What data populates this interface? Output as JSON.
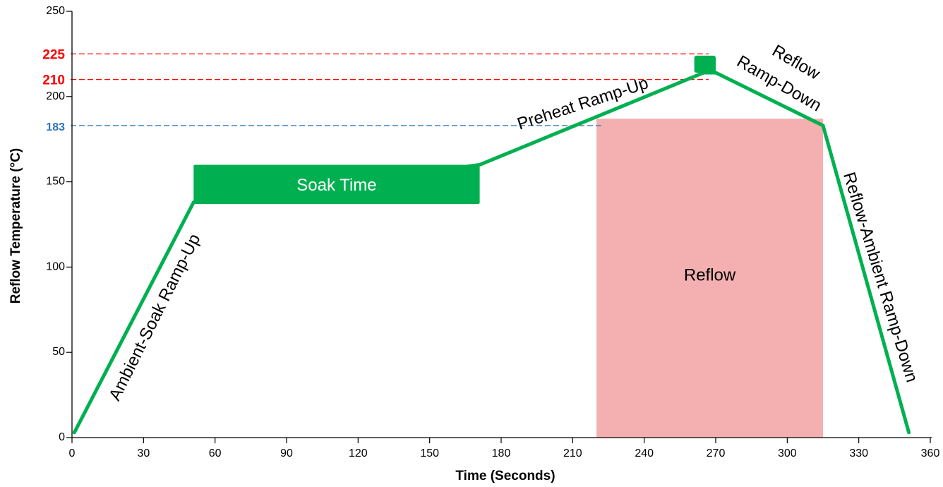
{
  "chart_data": {
    "type": "line",
    "title": "",
    "xlabel": "Time (Seconds)",
    "ylabel": "Reflow Temperature (°C)",
    "xlim": [
      0,
      360
    ],
    "ylim": [
      0,
      250
    ],
    "xticks": [
      0,
      30,
      60,
      90,
      120,
      150,
      180,
      210,
      240,
      270,
      300,
      330,
      360
    ],
    "yticks": [
      0,
      50,
      100,
      150,
      200,
      250
    ],
    "grid": false,
    "profile": {
      "x": [
        1,
        51,
        171,
        265,
        270,
        315,
        351
      ],
      "y": [
        3,
        138,
        160,
        214,
        214,
        183,
        3
      ],
      "color": "#00b050"
    },
    "reference_lines": [
      {
        "value": 225,
        "label": "225",
        "color": "#ff0000",
        "x_end": 267
      },
      {
        "value": 210,
        "label": "210",
        "color": "#ff0000",
        "x_end": 267
      },
      {
        "value": 183,
        "label": "183",
        "color": "#2e75b6",
        "x_end": 222
      }
    ],
    "soak_box": {
      "x0": 51,
      "x1": 171,
      "y0": 137,
      "y1": 160,
      "label": "Soak Time",
      "color": "#00b050"
    },
    "peak_box": {
      "x0": 261,
      "x1": 270,
      "y0": 214,
      "y1": 224,
      "color": "#00b050"
    },
    "reflow_region": {
      "x0": 220,
      "x1": 315,
      "y0": 0,
      "y1": 187,
      "label": "Reflow",
      "color": "#f4b0b0"
    },
    "annotations": [
      {
        "id": "ambient-soak",
        "text": "Ambient-Soak Ramp-Up"
      },
      {
        "id": "preheat",
        "text": "Preheat Ramp-Up"
      },
      {
        "id": "reflow-rampdown-1",
        "text": "Reflow"
      },
      {
        "id": "reflow-rampdown-2",
        "text": "Ramp-Down"
      },
      {
        "id": "reflow-ambient",
        "text": "Reflow-Ambient Ramp-Down"
      }
    ]
  }
}
